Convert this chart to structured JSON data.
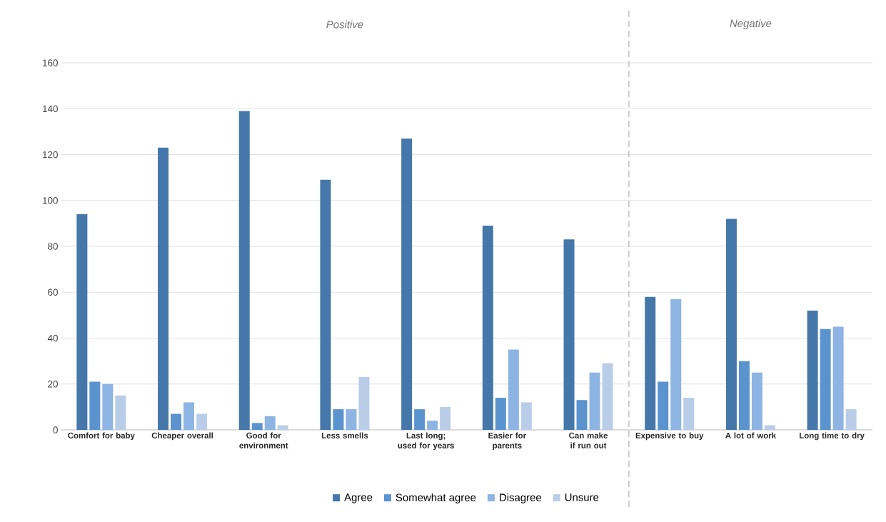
{
  "chart_data": {
    "type": "bar",
    "categories": [
      "Comfort for baby",
      "Cheaper overall",
      "Good for environment",
      "Less smells",
      "Last long; used for years",
      "Easier for parents",
      "Can make if run out",
      "Expensive to buy",
      "A lot of work",
      "Long time to dry"
    ],
    "series": [
      {
        "name": "Agree",
        "color": "#4677aa",
        "values": [
          94,
          123,
          139,
          109,
          127,
          89,
          83,
          58,
          92,
          52
        ]
      },
      {
        "name": "Somewhat agree",
        "color": "#5b93cf",
        "values": [
          21,
          7,
          3,
          9,
          9,
          14,
          13,
          21,
          30,
          44
        ]
      },
      {
        "name": "Disagree",
        "color": "#8eb4e3",
        "values": [
          20,
          12,
          6,
          9,
          4,
          35,
          25,
          57,
          25,
          45
        ]
      },
      {
        "name": "Unsure",
        "color": "#b9cde9",
        "values": [
          15,
          7,
          2,
          23,
          10,
          12,
          29,
          14,
          2,
          9
        ]
      }
    ],
    "ylim": [
      0,
      160
    ],
    "yticks": [
      0,
      20,
      40,
      60,
      80,
      100,
      120,
      140,
      160
    ],
    "grid": "y",
    "legend": "bottom",
    "annotations": [
      "Positive",
      "Negative"
    ]
  }
}
